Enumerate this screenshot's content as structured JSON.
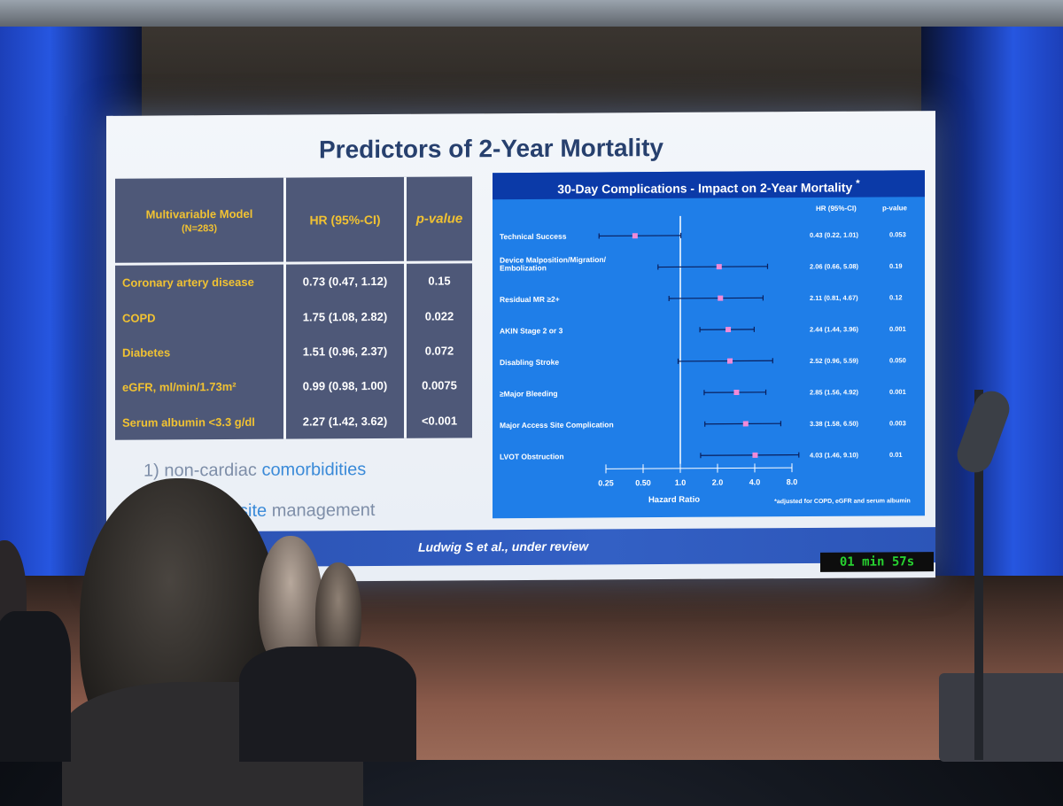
{
  "slide": {
    "title": "Predictors of 2-Year Mortality",
    "table": {
      "headers": [
        "Multivariable Model",
        "(N=283)",
        "HR (95%-CI)",
        "p-value"
      ],
      "rows": [
        {
          "label": "Coronary artery disease",
          "hr": "0.73 (0.47, 1.12)",
          "p": "0.15"
        },
        {
          "label": "COPD",
          "hr": "1.75 (1.08, 2.82)",
          "p": "0.022"
        },
        {
          "label": "Diabetes",
          "hr": "1.51 (0.96, 2.37)",
          "p": "0.072"
        },
        {
          "label": "eGFR, ml/min/1.73m²",
          "hr": "0.99 (0.98, 1.00)",
          "p": "0.0075"
        },
        {
          "label": "Serum albumin <3.3 g/dl",
          "hr": "2.27 (1.42, 3.62)",
          "p": "<0.001"
        }
      ]
    },
    "bullets": {
      "b1_num": "1)",
      "b1_text_a": "non-cardiac",
      "b1_text_b": "comorbidities",
      "b2_text_a": "site",
      "b2_text_b": "management"
    },
    "citation": "Ludwig S et al., under review",
    "timer": "01 min 57s"
  },
  "chart_data": {
    "type": "forest",
    "title": "30-Day Complications - Impact on 2-Year Mortality",
    "title_mark": "*",
    "col_hr": "HR (95%-CI)",
    "col_p": "p-value",
    "xlabel": "Hazard Ratio",
    "xscale": "log",
    "xticks": [
      "0.25",
      "0.50",
      "1.0",
      "2.0",
      "4.0",
      "8.0"
    ],
    "xtick_values": [
      0.25,
      0.5,
      1,
      2,
      4,
      8
    ],
    "footnote": "*adjusted for COPD, eGFR and serum albumin",
    "rows": [
      {
        "label": "Technical Success",
        "hr": 0.43,
        "lo": 0.22,
        "hi": 1.01,
        "hr_text": "0.43 (0.22, 1.01)",
        "p": "0.053"
      },
      {
        "label": "Device Malposition/Migration/",
        "label2": "Embolization",
        "hr": 2.06,
        "lo": 0.66,
        "hi": 5.08,
        "hr_text": "2.06 (0.66, 5.08)",
        "p": "0.19"
      },
      {
        "label": "Residual MR ≥2+",
        "hr": 2.11,
        "lo": 0.81,
        "hi": 4.67,
        "hr_text": "2.11 (0.81, 4.67)",
        "p": "0.12"
      },
      {
        "label": "AKIN Stage 2 or 3",
        "hr": 2.44,
        "lo": 1.44,
        "hi": 3.96,
        "hr_text": "2.44 (1.44, 3.96)",
        "p": "0.001"
      },
      {
        "label": "Disabling Stroke",
        "hr": 2.52,
        "lo": 0.96,
        "hi": 5.59,
        "hr_text": "2.52 (0.96, 5.59)",
        "p": "0.050"
      },
      {
        "label": "≥Major Bleeding",
        "hr": 2.85,
        "lo": 1.56,
        "hi": 4.92,
        "hr_text": "2.85 (1.56, 4.92)",
        "p": "0.001"
      },
      {
        "label": "Major Access Site Complication",
        "hr": 3.38,
        "lo": 1.58,
        "hi": 6.5,
        "hr_text": "3.38 (1.58, 6.50)",
        "p": "0.003"
      },
      {
        "label": "LVOT Obstruction",
        "hr": 4.03,
        "lo": 1.46,
        "hi": 9.1,
        "hr_text": "4.03 (1.46, 9.10)",
        "p": "0.01"
      }
    ],
    "colors": {
      "panel": "#1f7ee8",
      "title_bar": "#0b3aa8",
      "marker": "#f08ad8",
      "line": "#0a1f5c"
    }
  }
}
